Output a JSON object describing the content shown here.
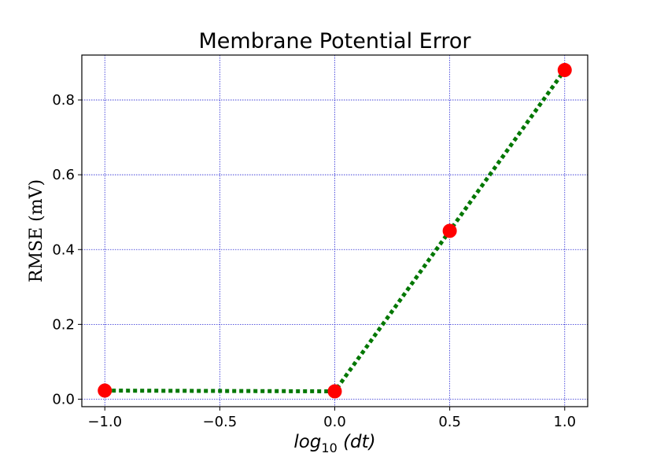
{
  "chart_data": {
    "type": "line",
    "title": "Membrane Potential Error",
    "ylabel": "RMSE (mV)",
    "xlabel": "log10(dt)",
    "xlabel_parts": {
      "prefix": "log",
      "subscript": "10",
      "suffix": " (dt)"
    },
    "xlim": [
      -1.1,
      1.1
    ],
    "ylim": [
      -0.02,
      0.92
    ],
    "x_ticks": [
      -1.0,
      -0.5,
      0.0,
      0.5,
      1.0
    ],
    "x_tick_labels": [
      "−1.0",
      "−0.5",
      "0.0",
      "0.5",
      "1.0"
    ],
    "y_ticks": [
      0.0,
      0.2,
      0.4,
      0.6,
      0.8
    ],
    "y_tick_labels": [
      "0.0",
      "0.2",
      "0.4",
      "0.6",
      "0.8"
    ],
    "grid": true,
    "series": [
      {
        "x": [
          -1.0,
          0.0,
          0.5,
          1.0
        ],
        "y": [
          0.023,
          0.021,
          0.45,
          0.88
        ],
        "line_color": "#007700",
        "line_style": "dotted",
        "marker_color": "#ff0000",
        "marker": "circle"
      }
    ],
    "colors": {
      "grid": "#0000cc",
      "axes": "#000000",
      "line": "#007700",
      "marker": "#ff0000"
    }
  }
}
